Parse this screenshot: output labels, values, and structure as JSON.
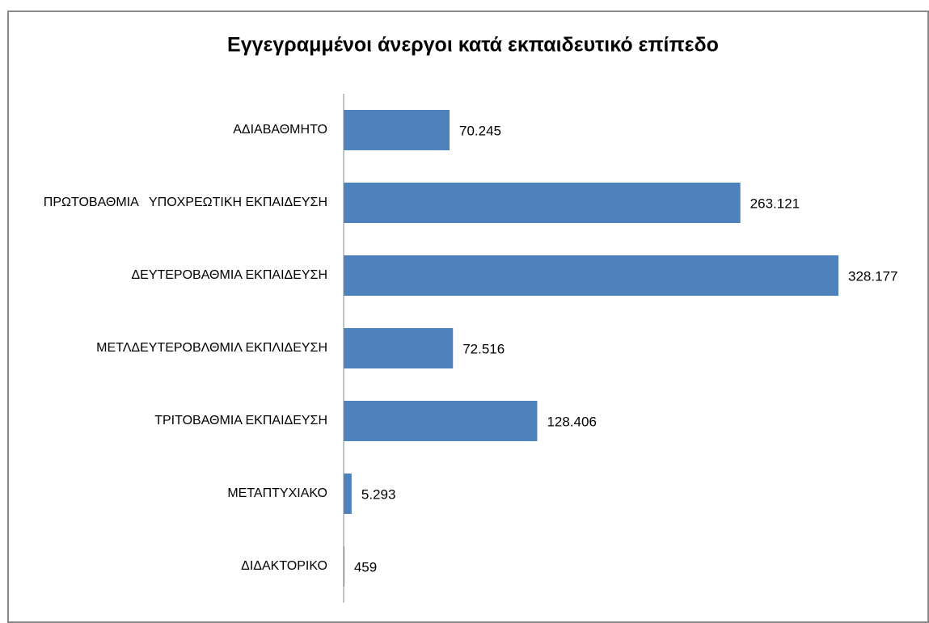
{
  "chart_data": {
    "type": "bar",
    "orientation": "horizontal",
    "title": "Εγγεγραμμένοι άνεργοι κατά εκπαιδευτικό επίπεδο",
    "categories": [
      "ΑΔΙΑΒΑΘΜΗΤΟ",
      "ΠΡΩΤΟΒΑΘΜΙΑ   ΥΠΟΧΡΕΩΤΙΚΗ ΕΚΠΑΙΔΕΥΣΗ",
      "ΔΕΥΤΕΡΟΒΑΘΜΙΑ ΕΚΠΑΙΔΕΥΣΗ",
      "ΜΕΤΛΔΕΥΤΕΡΟΒΛΘΜΙΛ ΕΚΠΛΙΔΕΥΣΗ",
      "ΤΡΙΤΟΒΑΘΜΙΑ ΕΚΠΑΙΔΕΥΣΗ",
      "ΜΕΤΑΠΤΥΧΙΑΚΟ",
      "ΔΙΔΑΚΤΟΡΙΚΟ"
    ],
    "values": [
      70245,
      263121,
      328177,
      72516,
      128406,
      5293,
      459
    ],
    "value_labels": [
      "70.245",
      "263.121",
      "328.177",
      "72.516",
      "128.406",
      "5.293",
      "459"
    ],
    "color": "#4f81bd"
  }
}
